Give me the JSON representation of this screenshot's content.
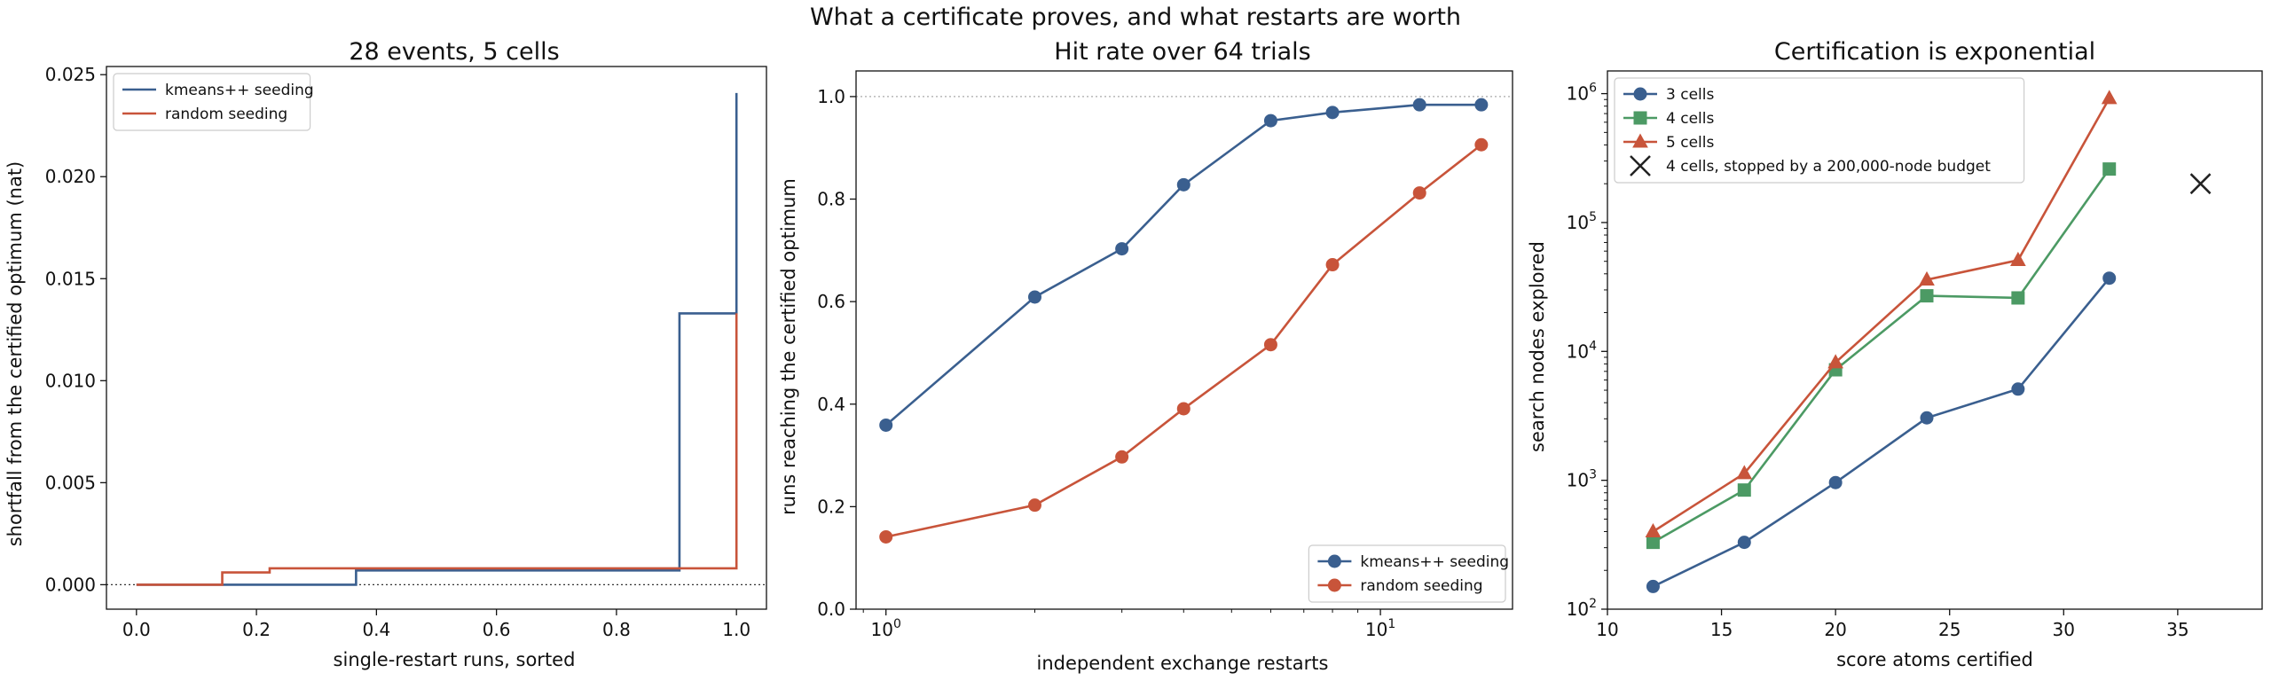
{
  "suptitle": "What a certificate proves, and what restarts are worth",
  "colors": {
    "kmeans": "#3a5f8f",
    "random": "#c8543a",
    "green": "#4c9a64",
    "black": "#222222"
  },
  "chart_data": [
    {
      "type": "line",
      "title": "28 events, 5 cells",
      "xlabel": "single-restart runs, sorted",
      "ylabel": "shortfall from the certified optimum (nat)",
      "xlim": [
        -0.05,
        1.05
      ],
      "ylim": [
        -0.0012,
        0.0254
      ],
      "xticks": [
        0.0,
        0.2,
        0.4,
        0.6,
        0.8,
        1.0
      ],
      "xticklabels": [
        "0.0",
        "0.2",
        "0.4",
        "0.6",
        "0.8",
        "1.0"
      ],
      "yticks": [
        0.0,
        0.005,
        0.01,
        0.015,
        0.02,
        0.025
      ],
      "yticklabels": [
        "0.000",
        "0.005",
        "0.010",
        "0.015",
        "0.020",
        "0.025"
      ],
      "reference_line": 0.0,
      "legend": "upper left",
      "series": [
        {
          "name": "kmeans++ seeding",
          "color_key": "kmeans",
          "step": true,
          "x": [
            0.0,
            0.143,
            0.143,
            0.366,
            0.366,
            0.48,
            0.48,
            0.905,
            0.905,
            1.0,
            1.0
          ],
          "y": [
            0.0,
            0.0,
            0.0,
            0.0,
            0.0007,
            0.0007,
            0.0007,
            0.0007,
            0.0133,
            0.0133,
            0.0241
          ]
        },
        {
          "name": "random seeding",
          "color_key": "random",
          "step": true,
          "x": [
            0.0,
            0.143,
            0.143,
            0.222,
            0.222,
            1.0,
            1.0
          ],
          "y": [
            0.0,
            0.0,
            0.0006,
            0.0006,
            0.0008,
            0.0008,
            0.0133
          ]
        }
      ]
    },
    {
      "type": "line",
      "title": "Hit rate over 64 trials",
      "xlabel": "independent exchange restarts",
      "ylabel": "runs reaching the certified optimum",
      "xscale": "log",
      "xlim": [
        0.87,
        18.5
      ],
      "ylim": [
        0.0,
        1.05
      ],
      "xticks": [
        1,
        10
      ],
      "xticklabels": [
        "10^0",
        "10^1"
      ],
      "yticks": [
        0.0,
        0.2,
        0.4,
        0.6,
        0.8,
        1.0
      ],
      "yticklabels": [
        "0.0",
        "0.2",
        "0.4",
        "0.6",
        "0.8",
        "1.0"
      ],
      "reference_line": 1.0,
      "legend": "lower right",
      "x": [
        1,
        2,
        3,
        4,
        6,
        8,
        12,
        16
      ],
      "series": [
        {
          "name": "kmeans++ seeding",
          "color_key": "kmeans",
          "marker": "circle",
          "values": [
            0.359,
            0.609,
            0.703,
            0.828,
            0.953,
            0.969,
            0.984,
            0.984
          ]
        },
        {
          "name": "random seeding",
          "color_key": "random",
          "marker": "circle",
          "values": [
            0.141,
            0.203,
            0.297,
            0.391,
            0.516,
            0.672,
            0.812,
            0.906
          ]
        }
      ]
    },
    {
      "type": "line",
      "title": "Certification is exponential",
      "xlabel": "score atoms certified",
      "ylabel": "search nodes explored",
      "yscale": "log",
      "xlim": [
        10,
        38.7
      ],
      "ylim": [
        100,
        1500000
      ],
      "xticks": [
        10,
        15,
        20,
        25,
        30,
        35
      ],
      "xticklabels": [
        "10",
        "15",
        "20",
        "25",
        "30",
        "35"
      ],
      "yticks": [
        100,
        1000,
        10000,
        100000,
        1000000
      ],
      "yticklabels": [
        "10^2",
        "10^3",
        "10^4",
        "10^5",
        "10^6"
      ],
      "legend": "upper left",
      "x": [
        12,
        16,
        20,
        24,
        28,
        32
      ],
      "series": [
        {
          "name": "3 cells",
          "color_key": "kmeans",
          "marker": "circle",
          "values": [
            150,
            330,
            960,
            3050,
            5100,
            37000
          ]
        },
        {
          "name": "4 cells",
          "color_key": "green",
          "marker": "square",
          "values": [
            330,
            840,
            7200,
            27000,
            26000,
            260000
          ]
        },
        {
          "name": "5 cells",
          "color_key": "random",
          "marker": "triangle",
          "values": [
            400,
            1130,
            8200,
            36000,
            51000,
            920000
          ]
        }
      ],
      "annotations": [
        {
          "name": "4 cells, stopped by a 200,000-node budget",
          "color_key": "black",
          "marker": "x",
          "x": 36,
          "y": 200000
        }
      ]
    }
  ]
}
